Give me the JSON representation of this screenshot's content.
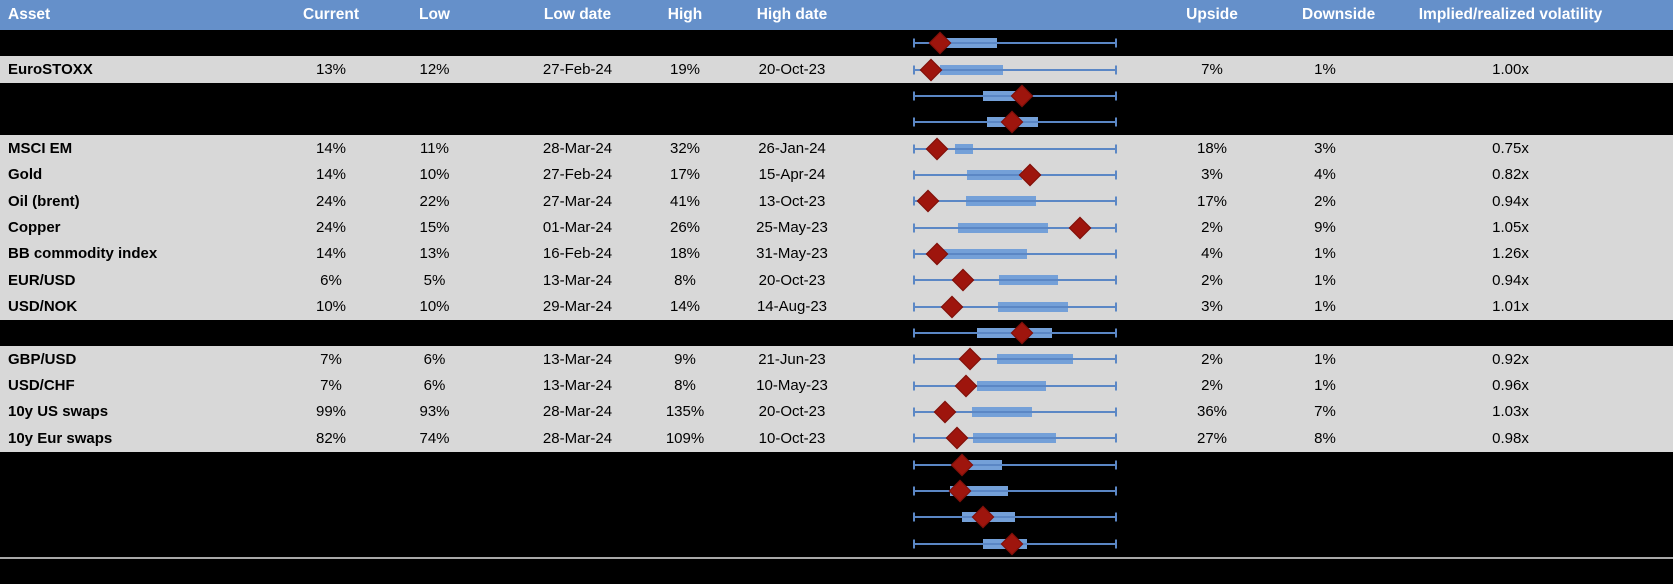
{
  "header": {
    "asset": "Asset",
    "current": "Current",
    "low": "Low",
    "low_date": "Low date",
    "high": "High",
    "high_date": "High date",
    "chart": "",
    "upside": "Upside",
    "downside": "Downside",
    "implied": "Implied/realized volatility"
  },
  "colors": {
    "header_bg": "#6590ca",
    "header_text": "#ffffff",
    "row_gray": "#d8d8d8",
    "row_black": "#000000",
    "box_fill": "#74a0d8",
    "whisker": "#5b87c5",
    "diamond": "#9e150d"
  },
  "table": {
    "rows": [
      {
        "bg": "black",
        "asset": "",
        "current": "",
        "low": "",
        "low_date": "",
        "high": "",
        "high_date": "",
        "upside": "",
        "downside": "",
        "implied": "",
        "box": {
          "lo": 0,
          "q1": 0.157,
          "q3": 0.412,
          "hi": 1,
          "cur": 0.132
        }
      },
      {
        "bg": "gray",
        "asset": "EuroSTOXX",
        "current": "13%",
        "low": "12%",
        "low_date": "27-Feb-24",
        "high": "19%",
        "high_date": "20-Oct-23",
        "upside": "7%",
        "downside": "1%",
        "implied": "1.00x",
        "box": {
          "lo": 0,
          "q1": 0.132,
          "q3": 0.441,
          "hi": 1,
          "cur": 0.088
        }
      },
      {
        "bg": "black",
        "asset": "",
        "current": "",
        "low": "",
        "low_date": "",
        "high": "",
        "high_date": "",
        "upside": "",
        "downside": "",
        "implied": "",
        "box": {
          "lo": 0,
          "q1": 0.343,
          "q3": 0.559,
          "hi": 1,
          "cur": 0.534
        }
      },
      {
        "bg": "black",
        "asset": "",
        "current": "",
        "low": "",
        "low_date": "",
        "high": "",
        "high_date": "",
        "upside": "",
        "downside": "",
        "implied": "",
        "box": {
          "lo": 0,
          "q1": 0.363,
          "q3": 0.613,
          "hi": 1,
          "cur": 0.485
        }
      },
      {
        "bg": "gray",
        "asset": "MSCI EM",
        "current": "14%",
        "low": "11%",
        "low_date": "28-Mar-24",
        "high": "32%",
        "high_date": "26-Jan-24",
        "upside": "18%",
        "downside": "3%",
        "implied": "0.75x",
        "box": {
          "lo": 0,
          "q1": 0.206,
          "q3": 0.294,
          "hi": 1,
          "cur": 0.118
        }
      },
      {
        "bg": "gray",
        "asset": "Gold",
        "current": "14%",
        "low": "10%",
        "low_date": "27-Feb-24",
        "high": "17%",
        "high_date": "15-Apr-24",
        "upside": "3%",
        "downside": "4%",
        "implied": "0.82x",
        "box": {
          "lo": 0,
          "q1": 0.265,
          "q3": 0.534,
          "hi": 1,
          "cur": 0.574
        }
      },
      {
        "bg": "gray",
        "asset": "Oil (brent)",
        "current": "24%",
        "low": "22%",
        "low_date": "27-Mar-24",
        "high": "41%",
        "high_date": "13-Oct-23",
        "upside": "17%",
        "downside": "2%",
        "implied": "0.94x",
        "box": {
          "lo": 0,
          "q1": 0.26,
          "q3": 0.603,
          "hi": 1,
          "cur": 0.074
        }
      },
      {
        "bg": "gray",
        "asset": "Copper",
        "current": "24%",
        "low": "15%",
        "low_date": "01-Mar-24",
        "high": "26%",
        "high_date": "25-May-23",
        "upside": "2%",
        "downside": "9%",
        "implied": "1.05x",
        "box": {
          "lo": 0,
          "q1": 0.221,
          "q3": 0.662,
          "hi": 1,
          "cur": 0.819
        }
      },
      {
        "bg": "gray",
        "asset": "BB commodity index",
        "current": "14%",
        "low": "13%",
        "low_date": "16-Feb-24",
        "high": "18%",
        "high_date": "31-May-23",
        "upside": "4%",
        "downside": "1%",
        "implied": "1.26x",
        "box": {
          "lo": 0,
          "q1": 0.132,
          "q3": 0.559,
          "hi": 1,
          "cur": 0.118
        }
      },
      {
        "bg": "gray",
        "asset": "EUR/USD",
        "current": "6%",
        "low": "5%",
        "low_date": "13-Mar-24",
        "high": "8%",
        "high_date": "20-Oct-23",
        "upside": "2%",
        "downside": "1%",
        "implied": "0.94x",
        "box": {
          "lo": 0,
          "q1": 0.422,
          "q3": 0.711,
          "hi": 1,
          "cur": 0.245
        }
      },
      {
        "bg": "gray",
        "asset": "USD/NOK",
        "current": "10%",
        "low": "10%",
        "low_date": "29-Mar-24",
        "high": "14%",
        "high_date": "14-Aug-23",
        "upside": "3%",
        "downside": "1%",
        "implied": "1.01x",
        "box": {
          "lo": 0,
          "q1": 0.417,
          "q3": 0.76,
          "hi": 1,
          "cur": 0.191
        }
      },
      {
        "bg": "black",
        "asset": "",
        "current": "",
        "low": "",
        "low_date": "",
        "high": "",
        "high_date": "",
        "upside": "",
        "downside": "",
        "implied": "",
        "box": {
          "lo": 0,
          "q1": 0.314,
          "q3": 0.681,
          "hi": 1,
          "cur": 0.534
        }
      },
      {
        "bg": "gray",
        "asset": "GBP/USD",
        "current": "7%",
        "low": "6%",
        "low_date": "13-Mar-24",
        "high": "9%",
        "high_date": "21-Jun-23",
        "upside": "2%",
        "downside": "1%",
        "implied": "0.92x",
        "box": {
          "lo": 0,
          "q1": 0.412,
          "q3": 0.784,
          "hi": 1,
          "cur": 0.279
        }
      },
      {
        "bg": "gray",
        "asset": "USD/CHF",
        "current": "7%",
        "low": "6%",
        "low_date": "13-Mar-24",
        "high": "8%",
        "high_date": "10-May-23",
        "upside": "2%",
        "downside": "1%",
        "implied": "0.96x",
        "box": {
          "lo": 0,
          "q1": 0.314,
          "q3": 0.652,
          "hi": 1,
          "cur": 0.26
        }
      },
      {
        "bg": "gray",
        "asset": "10y US swaps",
        "current": "99%",
        "low": "93%",
        "low_date": "28-Mar-24",
        "high": "135%",
        "high_date": "20-Oct-23",
        "upside": "36%",
        "downside": "7%",
        "implied": "1.03x",
        "box": {
          "lo": 0,
          "q1": 0.289,
          "q3": 0.583,
          "hi": 1,
          "cur": 0.157
        }
      },
      {
        "bg": "gray",
        "asset": "10y Eur swaps",
        "current": "82%",
        "low": "74%",
        "low_date": "28-Mar-24",
        "high": "109%",
        "high_date": "10-Oct-23",
        "upside": "27%",
        "downside": "8%",
        "implied": "0.98x",
        "box": {
          "lo": 0,
          "q1": 0.294,
          "q3": 0.701,
          "hi": 1,
          "cur": 0.216
        }
      },
      {
        "bg": "black",
        "asset": "",
        "current": "",
        "low": "",
        "low_date": "",
        "high": "",
        "high_date": "",
        "upside": "",
        "downside": "",
        "implied": "",
        "box": {
          "lo": 0,
          "q1": 0.245,
          "q3": 0.436,
          "hi": 1,
          "cur": 0.24
        }
      },
      {
        "bg": "black",
        "asset": "",
        "current": "",
        "low": "",
        "low_date": "",
        "high": "",
        "high_date": "",
        "upside": "",
        "downside": "",
        "implied": "",
        "box": {
          "lo": 0,
          "q1": 0.181,
          "q3": 0.466,
          "hi": 1,
          "cur": 0.23
        }
      },
      {
        "bg": "black",
        "asset": "",
        "current": "",
        "low": "",
        "low_date": "",
        "high": "",
        "high_date": "",
        "upside": "",
        "downside": "",
        "implied": "",
        "box": {
          "lo": 0,
          "q1": 0.24,
          "q3": 0.5,
          "hi": 1,
          "cur": 0.343
        }
      },
      {
        "bg": "black",
        "asset": "",
        "current": "",
        "low": "",
        "low_date": "",
        "high": "",
        "high_date": "",
        "upside": "",
        "downside": "",
        "implied": "",
        "box": {
          "lo": 0,
          "q1": 0.343,
          "q3": 0.559,
          "hi": 1,
          "cur": 0.485
        }
      }
    ]
  }
}
